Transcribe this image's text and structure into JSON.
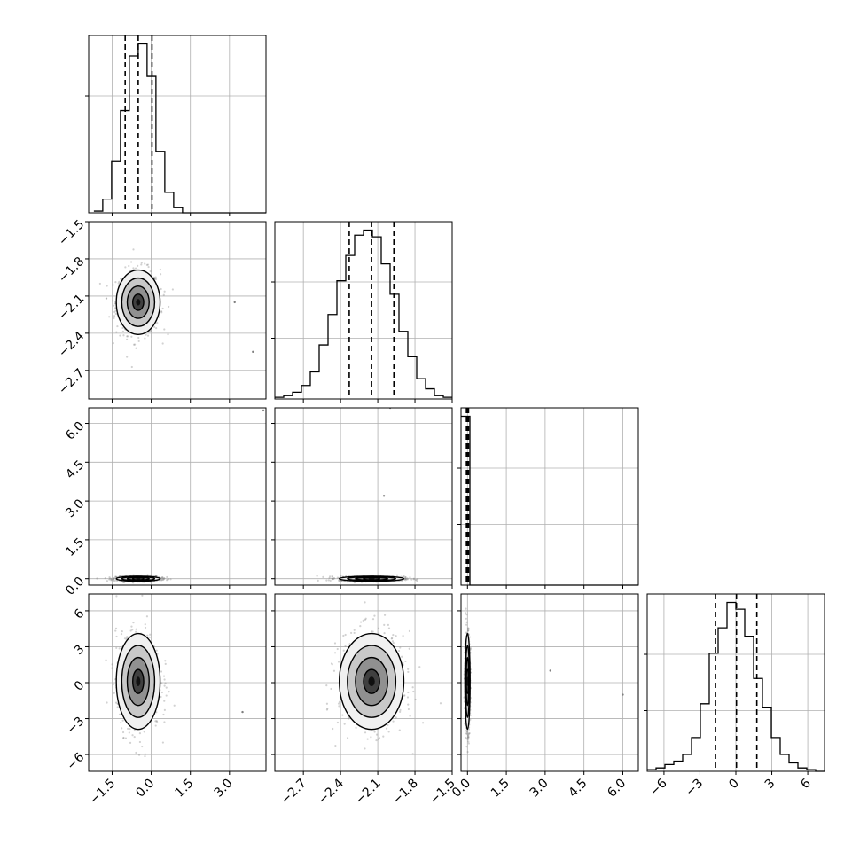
{
  "chart_data": {
    "type": "corner",
    "n_params": 4,
    "params": [
      {
        "range": [
          -2.4,
          4.4
        ],
        "ticks": [
          -1.5,
          0.0,
          1.5,
          3.0
        ],
        "tick_labels": [
          "−1.5",
          "0.0",
          "1.5",
          "3.0"
        ],
        "quantiles": [
          -1.0,
          -0.5,
          0.03
        ],
        "hist_bin_edges_start": -2.2,
        "hist_bin_width": 0.34,
        "hist_counts": [
          1,
          8,
          30,
          60,
          92,
          99,
          80,
          36,
          12,
          3,
          0,
          0,
          0,
          0,
          0,
          0,
          0,
          0,
          0,
          0
        ]
      },
      {
        "range": [
          -2.93,
          -1.5
        ],
        "ticks": [
          -2.7,
          -2.4,
          -2.1,
          -1.8,
          -1.5
        ],
        "tick_labels": [
          "−2.7",
          "−2.4",
          "−2.1",
          "−1.8",
          "−1.5"
        ],
        "quantiles": [
          -2.33,
          -2.15,
          -1.97
        ],
        "hist_bin_edges_start": -2.93,
        "hist_bin_width": 0.0715,
        "hist_counts": [
          1,
          2,
          4,
          8,
          16,
          32,
          50,
          70,
          85,
          97,
          100,
          96,
          80,
          62,
          40,
          25,
          12,
          6,
          2,
          1
        ]
      },
      {
        "range": [
          -0.25,
          6.6
        ],
        "ticks": [
          0.0,
          1.5,
          3.0,
          4.5,
          6.0
        ],
        "tick_labels": [
          "0.0",
          "1.5",
          "3.0",
          "4.5",
          "6.0"
        ],
        "quantiles": [
          -0.04,
          0.0,
          0.04
        ],
        "hist_bin_edges_start": -0.25,
        "hist_bin_width": 0.3425,
        "hist_counts": [
          100,
          0,
          0,
          0,
          0,
          0,
          0,
          0,
          0,
          0,
          0,
          0,
          0,
          0,
          0,
          0,
          0,
          0,
          0,
          0
        ]
      },
      {
        "range": [
          -7.4,
          7.4
        ],
        "ticks": [
          -6,
          -3,
          0,
          3,
          6
        ],
        "tick_labels": [
          "−6",
          "−3",
          "0",
          "3",
          "6"
        ],
        "quantiles": [
          -1.7,
          0.05,
          1.75
        ],
        "hist_bin_edges_start": -7.4,
        "hist_bin_width": 0.74,
        "hist_counts": [
          1,
          2,
          4,
          6,
          10,
          20,
          40,
          70,
          85,
          100,
          96,
          80,
          55,
          38,
          20,
          10,
          5,
          2,
          1,
          0
        ]
      }
    ],
    "scatter_centers": {
      "0": {
        "mean": -0.5,
        "sd": 0.42
      },
      "1": {
        "mean": -2.15,
        "sd": 0.13
      },
      "2": {
        "mean": 0.0,
        "sd": 0.05
      },
      "3": {
        "mean": 0.1,
        "sd": 2.0
      }
    },
    "outliers": [
      {
        "x": 4.3,
        "y": 6.5,
        "pair": [
          0,
          2
        ]
      },
      {
        "x": -2.0,
        "y": 6.6,
        "pair": [
          1,
          2
        ]
      },
      {
        "x": -2.05,
        "y": 3.2,
        "pair": [
          1,
          2
        ]
      },
      {
        "x": 3.2,
        "y": -2.15,
        "pair": [
          0,
          1
        ]
      },
      {
        "x": 3.9,
        "y": -2.55,
        "pair": [
          0,
          1
        ]
      },
      {
        "x": 3.5,
        "y": -2.45,
        "pair": [
          0,
          3
        ]
      },
      {
        "x": 6.0,
        "y": -1.0,
        "pair": [
          2,
          3
        ]
      },
      {
        "x": 3.2,
        "y": 1.0,
        "pair": [
          2,
          3
        ]
      }
    ],
    "grid": true,
    "colors": {
      "line": "#000000",
      "scatter": "#7f7f7f",
      "grid": "#b0b0b0"
    }
  }
}
